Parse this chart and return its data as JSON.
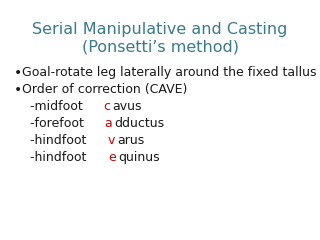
{
  "title_line1": "Serial Manipulative and Casting",
  "title_line2": "(Ponsetti’s method)",
  "title_color": "#3a7a8c",
  "background_color": "#ffffff",
  "bullet1": "Goal-rotate leg laterally around the fixed tallus",
  "bullet2": "Order of correction (CAVE)",
  "item1_pre": "-midfoot ",
  "item1_red": "c",
  "item1_post": "avus",
  "item2_pre": "-forefoot ",
  "item2_red": "a",
  "item2_post": "dductus",
  "item3_pre": "-hindfoot ",
  "item3_red": "v",
  "item3_post": "arus",
  "item4_pre": "-hindfoot ",
  "item4_red": "e",
  "item4_post": "quinus",
  "text_color": "#1a1a1a",
  "red_color": "#cc0000",
  "title_fontsize": 11.5,
  "body_fontsize": 9.0
}
